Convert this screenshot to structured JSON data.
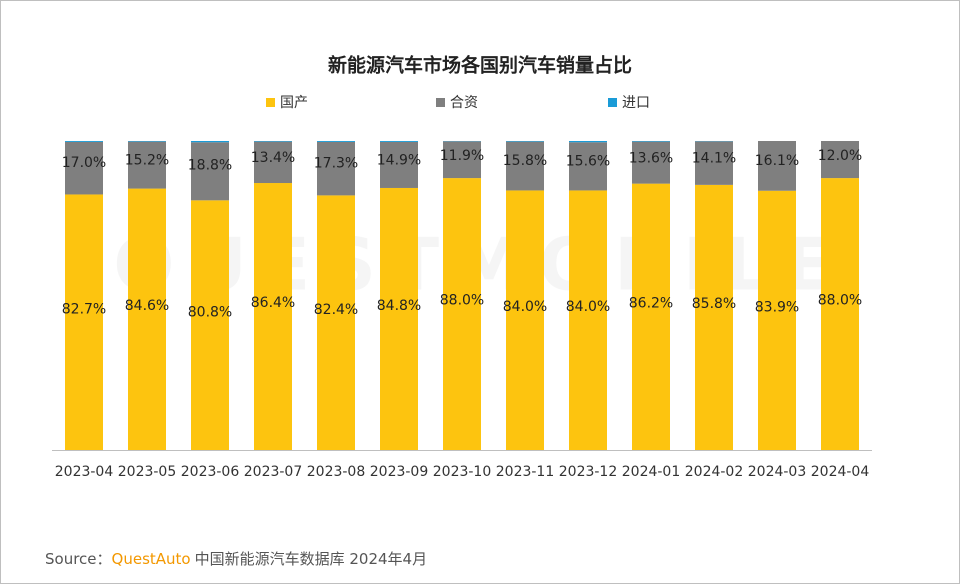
{
  "chart_data": {
    "type": "stacked_bar",
    "title": "新能源汽车市场各国别汽车销量占比",
    "watermark": "QUESTMOBILE",
    "categories": [
      "2023-04",
      "2023-05",
      "2023-06",
      "2023-07",
      "2023-08",
      "2023-09",
      "2023-10",
      "2023-11",
      "2023-12",
      "2024-01",
      "2024-02",
      "2024-03",
      "2024-04"
    ],
    "ylim": [
      0,
      100
    ],
    "series": [
      {
        "name": "国产",
        "color": "#fdc40f",
        "values": [
          82.7,
          84.6,
          80.8,
          86.4,
          82.4,
          84.8,
          88.0,
          84.0,
          84.0,
          86.2,
          85.8,
          83.9,
          88.0
        ],
        "value_labels": [
          "82.7%",
          "84.6%",
          "80.8%",
          "86.4%",
          "82.4%",
          "84.8%",
          "88.0%",
          "84.0%",
          "84.0%",
          "86.2%",
          "85.8%",
          "83.9%",
          "88.0%"
        ]
      },
      {
        "name": "合资",
        "color": "#7f7f7f",
        "values": [
          17.0,
          15.2,
          18.8,
          13.4,
          17.3,
          14.9,
          11.9,
          15.8,
          15.6,
          13.6,
          14.1,
          16.1,
          12.0
        ],
        "value_labels": [
          "17.0%",
          "15.2%",
          "18.8%",
          "13.4%",
          "17.3%",
          "14.9%",
          "11.9%",
          "15.8%",
          "15.6%",
          "13.6%",
          "14.1%",
          "16.1%",
          "12.0%"
        ]
      },
      {
        "name": "进口",
        "color": "#1a9bd7",
        "values": [
          0.3,
          0.2,
          0.4,
          0.2,
          0.3,
          0.3,
          0.1,
          0.2,
          0.4,
          0.2,
          0.1,
          0.0,
          0.0
        ]
      }
    ],
    "source": {
      "label": "Source：",
      "brand": "QuestAuto",
      "text": "中国新能源汽车数据库 2024年4月"
    }
  }
}
